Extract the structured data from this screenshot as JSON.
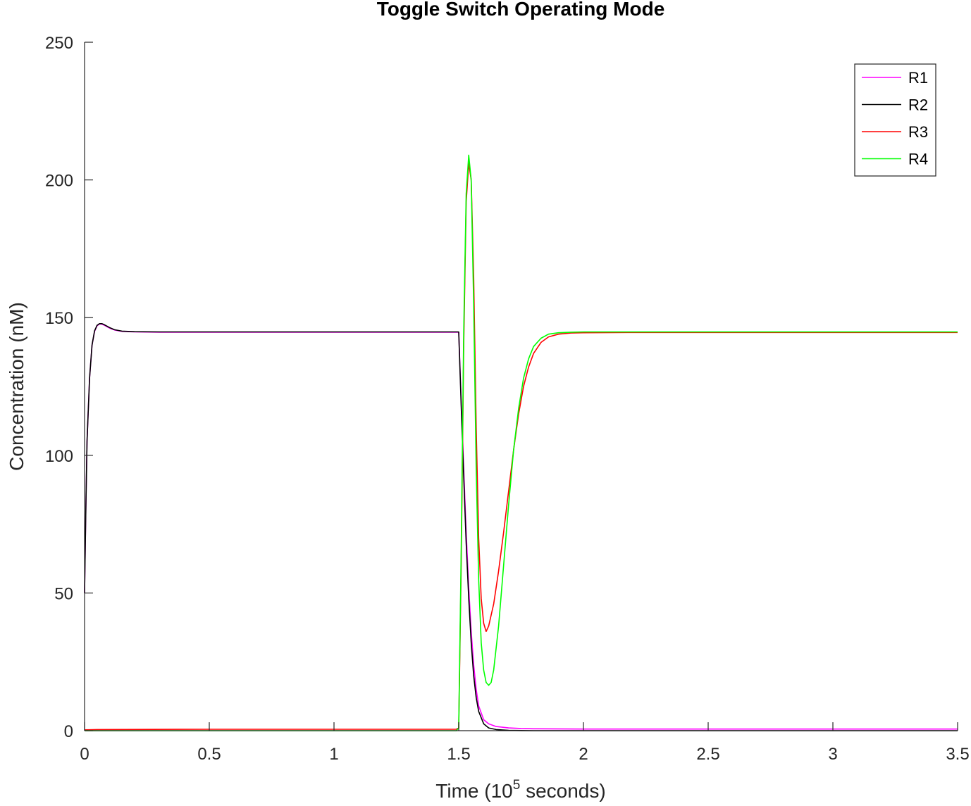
{
  "chart_data": {
    "type": "line",
    "title": "Toggle Switch Operating Mode",
    "xlabel": {
      "prefix": "Time (10",
      "exponent": "5",
      "suffix": " seconds)"
    },
    "ylabel": "Concentration (nM)",
    "xlim": [
      0,
      3.5
    ],
    "ylim": [
      0,
      250
    ],
    "xticks": [
      0,
      0.5,
      1,
      1.5,
      2,
      2.5,
      3,
      3.5
    ],
    "xtick_labels": [
      "0",
      "0.5",
      "1",
      "1.5",
      "2",
      "2.5",
      "3",
      "3.5"
    ],
    "yticks": [
      0,
      50,
      100,
      150,
      200,
      250
    ],
    "ytick_labels": [
      "0",
      "50",
      "100",
      "150",
      "200",
      "250"
    ],
    "grid": false,
    "legend_position": "top-right",
    "series": [
      {
        "name": "R1",
        "color": "#ff00ff",
        "x": [
          0,
          0.005,
          0.01,
          0.02,
          0.03,
          0.04,
          0.05,
          0.06,
          0.07,
          0.08,
          0.1,
          0.12,
          0.15,
          0.2,
          0.3,
          0.5,
          1.0,
          1.4,
          1.5,
          1.51,
          1.52,
          1.53,
          1.54,
          1.55,
          1.56,
          1.57,
          1.58,
          1.6,
          1.62,
          1.65,
          1.7,
          1.75,
          1.8,
          2.0,
          2.5,
          3.0,
          3.5
        ],
        "y": [
          50,
          80,
          105,
          128,
          140,
          145,
          147,
          147.7,
          147.6,
          147.2,
          146.2,
          145.5,
          145,
          144.8,
          144.7,
          144.7,
          144.7,
          144.7,
          144.7,
          120,
          95,
          72,
          52,
          36,
          24,
          15,
          9,
          4,
          2.5,
          1.5,
          1.0,
          0.8,
          0.7,
          0.6,
          0.6,
          0.6,
          0.6
        ]
      },
      {
        "name": "R2",
        "color": "#000000",
        "x": [
          0,
          0.005,
          0.01,
          0.02,
          0.03,
          0.04,
          0.05,
          0.06,
          0.07,
          0.08,
          0.1,
          0.12,
          0.15,
          0.2,
          0.3,
          0.5,
          1.0,
          1.4,
          1.5,
          1.51,
          1.52,
          1.53,
          1.54,
          1.55,
          1.56,
          1.57,
          1.58,
          1.6,
          1.62,
          1.65,
          1.7,
          1.75,
          1.8,
          2.0,
          2.5,
          3.0,
          3.5
        ],
        "y": [
          50,
          80,
          105,
          128,
          140,
          145.2,
          147.2,
          147.8,
          147.8,
          147.4,
          146.4,
          145.6,
          145.1,
          144.9,
          144.8,
          144.8,
          144.8,
          144.8,
          144.8,
          118,
          92,
          68,
          48,
          32,
          20,
          12,
          7,
          2.5,
          1.0,
          0.4,
          0.1,
          0.05,
          0,
          0,
          0,
          0,
          0
        ]
      },
      {
        "name": "R3",
        "color": "#ff0000",
        "x": [
          0,
          0.05,
          0.5,
          1.0,
          1.4,
          1.49,
          1.5,
          1.51,
          1.52,
          1.53,
          1.54,
          1.55,
          1.56,
          1.57,
          1.58,
          1.59,
          1.6,
          1.61,
          1.62,
          1.64,
          1.66,
          1.68,
          1.7,
          1.72,
          1.74,
          1.76,
          1.78,
          1.8,
          1.83,
          1.86,
          1.9,
          1.95,
          2.0,
          2.2,
          2.5,
          3.0,
          3.5
        ],
        "y": [
          0.3,
          0.4,
          0.5,
          0.5,
          0.5,
          0.5,
          1,
          60,
          140,
          192,
          206,
          200,
          165,
          110,
          70,
          48,
          39,
          36,
          38,
          46,
          58,
          72,
          87,
          102,
          115,
          125,
          132,
          137,
          141,
          143,
          144,
          144.4,
          144.5,
          144.6,
          144.6,
          144.6,
          144.6
        ]
      },
      {
        "name": "R4",
        "color": "#00ff00",
        "x": [
          0,
          0.05,
          0.5,
          1.0,
          1.4,
          1.49,
          1.5,
          1.51,
          1.52,
          1.53,
          1.54,
          1.55,
          1.56,
          1.57,
          1.58,
          1.59,
          1.6,
          1.61,
          1.62,
          1.63,
          1.64,
          1.66,
          1.68,
          1.7,
          1.72,
          1.74,
          1.76,
          1.78,
          1.8,
          1.83,
          1.86,
          1.9,
          1.95,
          2.0,
          2.2,
          2.5,
          3.0,
          3.5
        ],
        "y": [
          0,
          0,
          0,
          0,
          0,
          0,
          1,
          65,
          145,
          195,
          209,
          200,
          155,
          95,
          55,
          32,
          22,
          17.5,
          16.5,
          17.5,
          22,
          38,
          60,
          82,
          102,
          117,
          128,
          135,
          139.5,
          142.5,
          144,
          144.5,
          144.7,
          144.8,
          144.8,
          144.8,
          144.8,
          144.8
        ]
      }
    ]
  }
}
